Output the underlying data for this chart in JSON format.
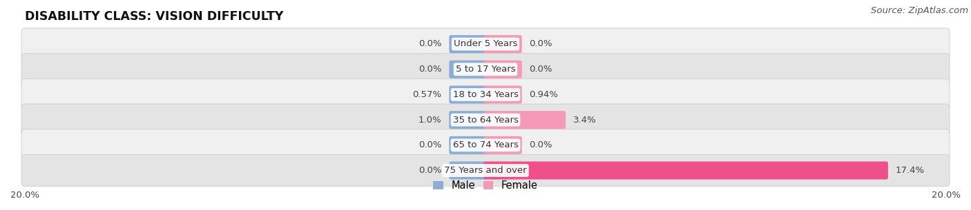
{
  "title": "DISABILITY CLASS: VISION DIFFICULTY",
  "source": "Source: ZipAtlas.com",
  "categories": [
    "Under 5 Years",
    "5 to 17 Years",
    "18 to 34 Years",
    "35 to 64 Years",
    "65 to 74 Years",
    "75 Years and over"
  ],
  "male_values": [
    0.0,
    0.0,
    0.57,
    1.0,
    0.0,
    0.0
  ],
  "female_values": [
    0.0,
    0.0,
    0.94,
    3.4,
    0.0,
    17.4
  ],
  "male_labels": [
    "0.0%",
    "0.0%",
    "0.57%",
    "1.0%",
    "0.0%",
    "0.0%"
  ],
  "female_labels": [
    "0.0%",
    "0.0%",
    "0.94%",
    "3.4%",
    "0.0%",
    "17.4%"
  ],
  "male_color": "#8eadd4",
  "female_color": "#f499b7",
  "female_color_bright": "#f0508a",
  "row_bg_colors": [
    "#f0f0f0",
    "#e4e4e4"
  ],
  "axis_max": 20.0,
  "min_bar_val": 1.5,
  "bar_height": 0.55,
  "title_fontsize": 12.5,
  "label_fontsize": 9.5,
  "source_fontsize": 9.5,
  "legend_fontsize": 10.5,
  "cat_label_fontsize": 9.5
}
